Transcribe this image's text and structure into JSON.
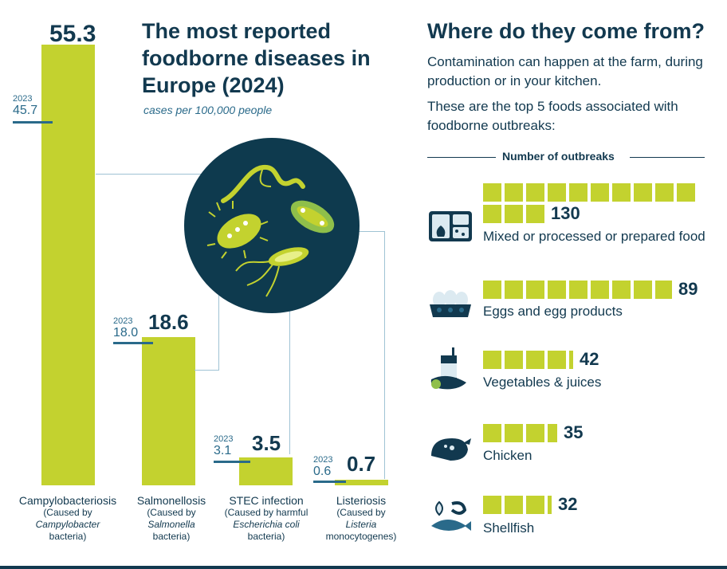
{
  "header": {
    "title": "The most reported foodborne diseases in Europe (2024)",
    "subtitle": "cases per 100,000 people"
  },
  "right_panel": {
    "title": "Where do they come from?",
    "intro_1": "Contamination can happen at the farm, during production or in your kitchen.",
    "intro_2": "These are the top 5 foods associated with foodborne outbreaks:",
    "axis_label": "Number of outbreaks"
  },
  "labels": {
    "d0": {
      "name": "Campylobacteriosis",
      "l1": "",
      "l2": "(Caused by",
      "l3": "Campylobacter",
      "l4": "bacteria)"
    },
    "d1": {
      "name": "Salmonellosis",
      "l1": "",
      "l2": "(Caused by",
      "l3": "Salmonella",
      "l4": "bacteria)"
    },
    "d2": {
      "name": "STEC infection",
      "l1": "",
      "l2": "(Caused by harmful",
      "l3": "Escherichia coli",
      "l4": "bacteria)"
    },
    "d3": {
      "name": "Listeriosis",
      "l1": "",
      "l2": "(Caused by",
      "l3": "Listeria",
      "l4": "monocytogenes)"
    }
  },
  "value_labels": {
    "d0": "55.3",
    "d1": "18.6",
    "d2": "3.5",
    "d3": "0.7",
    "p0": "45.7",
    "p1": "18.0",
    "p2": "3.1",
    "p3": "0.6",
    "year": "2023"
  },
  "food_labels": {
    "f0": {
      "value": "130",
      "label": "Mixed or processed or prepared food",
      "icon": "prepared-food-icon"
    },
    "f1": {
      "value": "89",
      "label": "Eggs and egg products",
      "icon": "eggs-icon"
    },
    "f2": {
      "value": "42",
      "label": "Vegetables & juices",
      "icon": "vegetables-juice-icon"
    },
    "f3": {
      "value": "35",
      "label": "Chicken",
      "icon": "chicken-icon"
    },
    "f4": {
      "value": "32",
      "label": "Shellfish",
      "icon": "shellfish-icon"
    }
  },
  "colors": {
    "bar": "#c3d22f",
    "navy": "#12394f",
    "teal": "#2a6a8a",
    "circle": "#0e3a4e"
  },
  "chart_data": [
    {
      "type": "bar",
      "title": "The most reported foodborne diseases in Europe (2024)",
      "subtitle": "cases per 100,000 people",
      "categories": [
        "Campylobacteriosis",
        "Salmonellosis",
        "STEC infection",
        "Listeriosis"
      ],
      "series": [
        {
          "name": "2024",
          "values": [
            55.3,
            18.6,
            3.5,
            0.7
          ]
        },
        {
          "name": "2023",
          "values": [
            45.7,
            18.0,
            3.1,
            0.6
          ]
        }
      ],
      "ylim": [
        0,
        55.3
      ]
    },
    {
      "type": "bar",
      "title": "Number of outbreaks",
      "categories": [
        "Mixed or processed or prepared food",
        "Eggs and egg products",
        "Vegetables & juices",
        "Chicken",
        "Shellfish"
      ],
      "values": [
        130,
        89,
        42,
        35,
        32
      ],
      "unit_per_square": 10
    }
  ]
}
